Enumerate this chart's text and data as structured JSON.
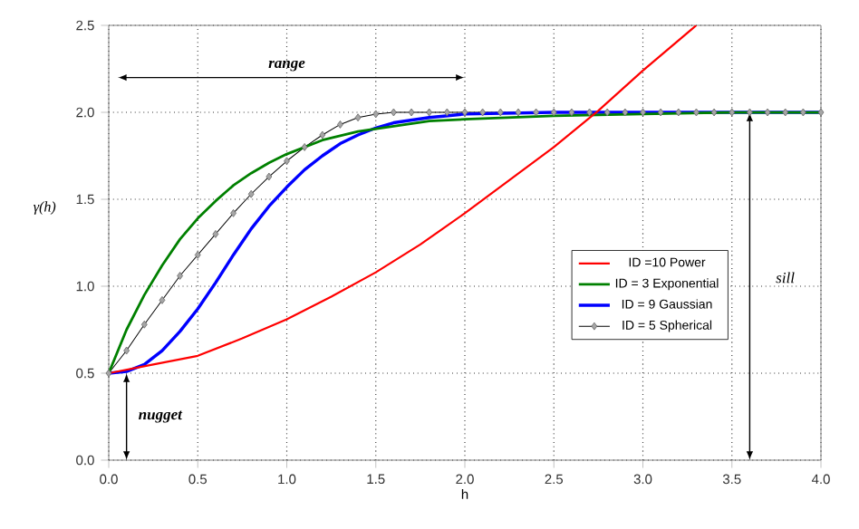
{
  "chart_data": {
    "type": "line",
    "xlabel": "h",
    "ylabel": "γ(h)",
    "xlim": [
      0,
      4
    ],
    "ylim": [
      0,
      2.5
    ],
    "xticks": [
      {
        "value": 0,
        "label": "0.0"
      },
      {
        "value": 0.5,
        "label": "0.5"
      },
      {
        "value": 1,
        "label": "1.0"
      },
      {
        "value": 1.5,
        "label": "1.5"
      },
      {
        "value": 2,
        "label": "2.0"
      },
      {
        "value": 2.5,
        "label": "2.5"
      },
      {
        "value": 3,
        "label": "3.0"
      },
      {
        "value": 3.5,
        "label": "3.5"
      },
      {
        "value": 4,
        "label": "4.0"
      }
    ],
    "yticks": [
      {
        "value": 0,
        "label": "0.0"
      },
      {
        "value": 0.5,
        "label": "0.5"
      },
      {
        "value": 1,
        "label": "1.0"
      },
      {
        "value": 1.5,
        "label": "1.5"
      },
      {
        "value": 2,
        "label": "2.0"
      },
      {
        "value": 2.5,
        "label": "2.5"
      }
    ],
    "grid": true,
    "legend": "right",
    "series": [
      {
        "name": "ID =10 Power",
        "color": "#ff0000",
        "x": [
          0,
          0.25,
          0.5,
          0.75,
          1.0,
          1.25,
          1.5,
          1.75,
          2.0,
          2.25,
          2.5,
          2.75,
          3.0,
          3.3
        ],
        "values": [
          0.5,
          0.55,
          0.6,
          0.7,
          0.81,
          0.94,
          1.08,
          1.24,
          1.42,
          1.61,
          1.8,
          2.01,
          2.24,
          2.5
        ]
      },
      {
        "name": "ID = 3 Exponential",
        "color": "#008000",
        "x": [
          0,
          0.1,
          0.2,
          0.3,
          0.4,
          0.5,
          0.6,
          0.7,
          0.8,
          0.9,
          1.0,
          1.2,
          1.4,
          1.6,
          1.8,
          2.0,
          2.5,
          3.0,
          3.5,
          4.0
        ],
        "values": [
          0.5,
          0.75,
          0.95,
          1.12,
          1.27,
          1.39,
          1.49,
          1.58,
          1.65,
          1.71,
          1.76,
          1.84,
          1.89,
          1.92,
          1.95,
          1.96,
          1.98,
          1.99,
          2.0,
          2.0
        ]
      },
      {
        "name": "ID = 9 Gaussian",
        "color": "#0000ff",
        "x": [
          0,
          0.1,
          0.2,
          0.3,
          0.4,
          0.5,
          0.6,
          0.7,
          0.8,
          0.9,
          1.0,
          1.1,
          1.2,
          1.3,
          1.4,
          1.5,
          1.6,
          1.8,
          2.0,
          2.5,
          3.0,
          3.5,
          4.0
        ],
        "values": [
          0.5,
          0.51,
          0.55,
          0.63,
          0.74,
          0.87,
          1.02,
          1.18,
          1.33,
          1.46,
          1.57,
          1.67,
          1.75,
          1.82,
          1.87,
          1.91,
          1.94,
          1.97,
          1.99,
          2.0,
          2.0,
          2.0,
          2.0
        ]
      },
      {
        "name": "ID = 5 Spherical",
        "color": "#000000",
        "marker": "diamond",
        "x": [
          0,
          0.1,
          0.2,
          0.3,
          0.4,
          0.5,
          0.6,
          0.7,
          0.8,
          0.9,
          1.0,
          1.1,
          1.2,
          1.3,
          1.4,
          1.5,
          1.6,
          1.7,
          1.8,
          1.9,
          2.0,
          2.1,
          2.2,
          2.3,
          2.4,
          2.5,
          2.6,
          2.7,
          2.8,
          2.9,
          3.0,
          3.1,
          3.2,
          3.3,
          3.4,
          3.5,
          3.6,
          3.7,
          3.8,
          3.9,
          4.0
        ],
        "values": [
          0.5,
          0.63,
          0.78,
          0.92,
          1.06,
          1.18,
          1.3,
          1.42,
          1.53,
          1.63,
          1.72,
          1.8,
          1.87,
          1.93,
          1.97,
          1.99,
          2.0,
          2.0,
          2.0,
          2.0,
          2.0,
          2.0,
          2.0,
          2.0,
          2.0,
          2.0,
          2.0,
          2.0,
          2.0,
          2.0,
          2.0,
          2.0,
          2.0,
          2.0,
          2.0,
          2.0,
          2.0,
          2.0,
          2.0,
          2.0,
          2.0
        ]
      }
    ],
    "annotations": [
      "**range**",
      "**nugget**",
      "sill"
    ]
  }
}
